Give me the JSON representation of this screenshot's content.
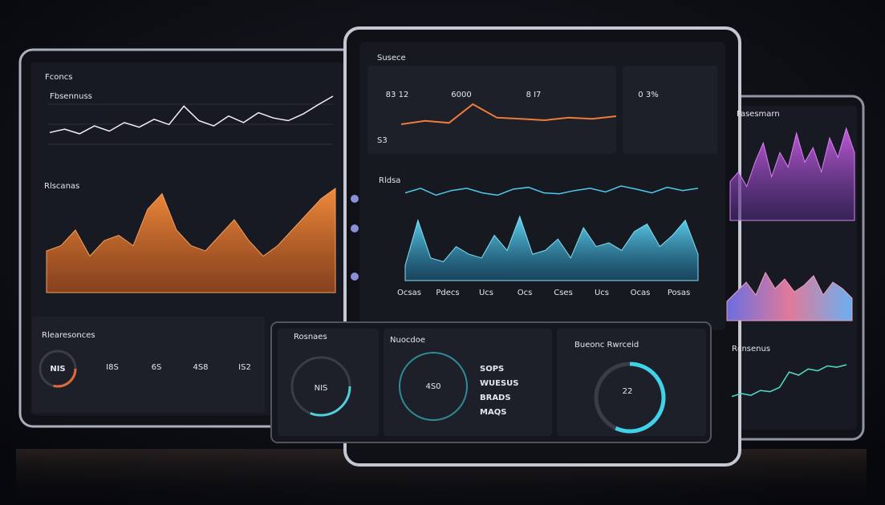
{
  "left_tablet": {
    "header": "Fconcs",
    "line_chart": {
      "title": "Fbsennuss",
      "values": [
        30,
        35,
        28,
        40,
        32,
        45,
        38,
        50,
        42,
        70,
        48,
        40,
        55,
        45,
        60,
        52,
        48,
        58,
        72,
        85
      ]
    },
    "area_chart": {
      "title": "Rlscanas",
      "values": [
        40,
        45,
        60,
        35,
        50,
        55,
        45,
        80,
        95,
        60,
        45,
        40,
        55,
        70,
        50,
        35,
        45,
        60,
        75,
        90,
        100
      ]
    },
    "stats_title": "Rlearesonces",
    "stats": [
      "NIS",
      "I8S",
      "6S",
      "4S8",
      "IS2"
    ]
  },
  "center_tablet": {
    "header": "Susece",
    "kpis": [
      "83 12",
      "6000",
      "8 I7",
      "0 3%"
    ],
    "kpi_line": {
      "values": [
        30,
        35,
        32,
        60,
        40,
        38,
        36,
        40,
        38,
        42
      ]
    },
    "kpi_sub": "S3",
    "wave_title": "Rldsa",
    "wave_line": {
      "values": [
        60,
        70,
        55,
        65,
        70,
        60,
        55,
        68,
        72,
        60,
        58,
        65,
        70,
        62,
        75,
        68,
        60,
        72,
        65,
        70
      ]
    },
    "wave_area": {
      "values": [
        20,
        80,
        30,
        25,
        45,
        35,
        30,
        60,
        40,
        85,
        35,
        40,
        55,
        30,
        70,
        45,
        50,
        40,
        65,
        75,
        45,
        60,
        80,
        35
      ]
    },
    "wave_labels": [
      "Ocsas",
      "Pdecs",
      "Ucs",
      "Ocs",
      "Cses",
      "Ucs",
      "Ocas",
      "Posas"
    ],
    "gauge_panels": [
      {
        "title": "Rosnaes",
        "value": "NIS"
      },
      {
        "title": "Nuocdoe",
        "value": "4S0",
        "items": [
          "SOPS",
          "WUESUS",
          "BRADS",
          "MAQS"
        ]
      },
      {
        "title": "Bueonc Rwrceid",
        "value": "22"
      }
    ]
  },
  "right_tablet": {
    "header": "Fasesmarn",
    "top_chart": {
      "values": [
        40,
        50,
        35,
        60,
        80,
        45,
        70,
        55,
        90,
        60,
        75,
        50,
        85,
        65,
        95,
        70
      ]
    },
    "mid_chart": {
      "values": [
        30,
        45,
        60,
        40,
        75,
        50,
        65,
        45,
        55,
        70,
        40,
        60,
        50,
        35
      ]
    },
    "bottom_chart": {
      "title": "Rcnsenus",
      "values": [
        20,
        25,
        22,
        30,
        28,
        35,
        60,
        55,
        65,
        62,
        70,
        68,
        72
      ]
    }
  }
}
